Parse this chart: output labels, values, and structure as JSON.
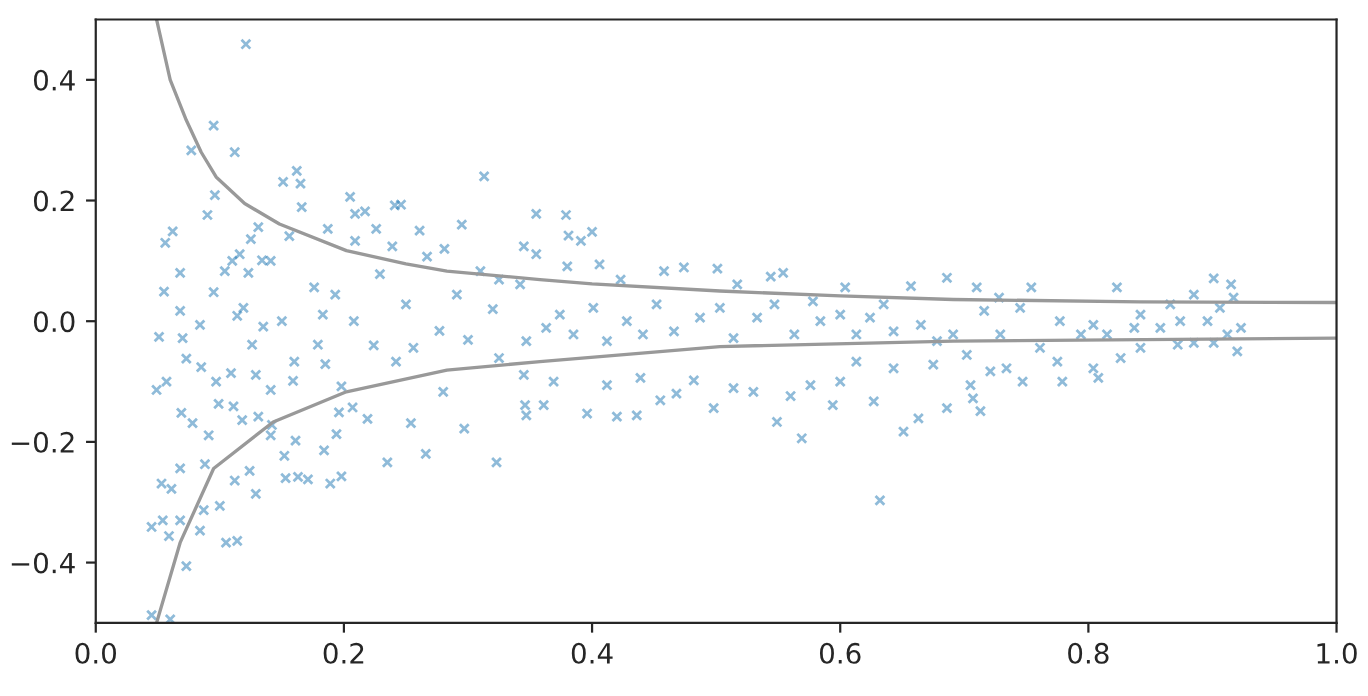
{
  "chart_data": {
    "type": "scatter",
    "marker": "cross",
    "grid": false,
    "xlim": [
      0,
      1
    ],
    "ylim": [
      -0.5,
      0.5
    ],
    "xticks": [
      {
        "value": 0,
        "label": "0.0"
      },
      0.2,
      0.4,
      0.6,
      0.8,
      {
        "value": 1,
        "label": "1.0"
      }
    ],
    "yticks": [
      {
        "value": -0.4,
        "label": "−0.4"
      },
      {
        "value": -0.2,
        "label": "−0.2"
      },
      {
        "value": 0,
        "label": "0.0"
      },
      0.2,
      0.4
    ],
    "series": [
      {
        "color": "#1f77b4",
        "x": [
          0.121,
          0.095,
          0.077,
          0.112,
          0.096,
          0.09,
          0.062,
          0.056,
          0.068,
          0.055,
          0.068,
          0.051,
          0.049,
          0.057,
          0.069,
          0.078,
          0.068,
          0.053,
          0.061,
          0.045,
          0.054,
          0.059,
          0.068,
          0.073,
          0.045,
          0.06,
          0.084,
          0.087,
          0.1,
          0.105,
          0.114,
          0.112,
          0.124,
          0.129,
          0.088,
          0.091,
          0.099,
          0.111,
          0.118,
          0.131,
          0.142,
          0.141,
          0.152,
          0.153,
          0.163,
          0.161,
          0.171,
          0.189,
          0.198,
          0.194,
          0.184,
          0.196,
          0.235,
          0.266,
          0.323,
          0.297,
          0.254,
          0.219,
          0.207,
          0.198,
          0.159,
          0.141,
          0.129,
          0.109,
          0.097,
          0.085,
          0.073,
          0.07,
          0.084,
          0.095,
          0.104,
          0.11,
          0.116,
          0.125,
          0.131,
          0.151,
          0.162,
          0.165,
          0.166,
          0.156,
          0.141,
          0.134,
          0.123,
          0.119,
          0.114,
          0.126,
          0.135,
          0.15,
          0.16,
          0.179,
          0.185,
          0.183,
          0.176,
          0.193,
          0.205,
          0.209,
          0.217,
          0.241,
          0.246,
          0.209,
          0.187,
          0.226,
          0.239,
          0.267,
          0.281,
          0.313,
          0.295,
          0.261,
          0.229,
          0.25,
          0.208,
          0.224,
          0.242,
          0.256,
          0.277,
          0.3,
          0.32,
          0.342,
          0.325,
          0.31,
          0.291,
          0.28,
          0.325,
          0.345,
          0.346,
          0.355,
          0.379,
          0.4,
          0.381,
          0.391,
          0.345,
          0.355,
          0.38,
          0.406,
          0.423,
          0.458,
          0.474,
          0.501,
          0.517,
          0.544,
          0.554,
          0.578,
          0.604,
          0.635,
          0.657,
          0.686,
          0.347,
          0.363,
          0.374,
          0.385,
          0.401,
          0.412,
          0.428,
          0.441,
          0.452,
          0.466,
          0.487,
          0.503,
          0.514,
          0.533,
          0.547,
          0.563,
          0.584,
          0.6,
          0.613,
          0.624,
          0.643,
          0.665,
          0.678,
          0.347,
          0.361,
          0.369,
          0.396,
          0.412,
          0.42,
          0.436,
          0.439,
          0.455,
          0.468,
          0.482,
          0.498,
          0.514,
          0.53,
          0.549,
          0.56,
          0.569,
          0.576,
          0.594,
          0.6,
          0.627,
          0.632,
          0.651,
          0.663,
          0.675,
          0.643,
          0.613,
          0.71,
          0.728,
          0.754,
          0.823,
          0.901,
          0.915,
          0.92,
          0.686,
          0.713,
          0.707,
          0.705,
          0.747,
          0.779,
          0.808,
          0.804,
          0.734,
          0.721,
          0.826,
          0.842,
          0.872,
          0.885,
          0.901,
          0.691,
          0.702,
          0.729,
          0.761,
          0.775,
          0.794,
          0.804,
          0.837,
          0.842,
          0.866,
          0.874,
          0.896,
          0.906,
          0.917,
          0.923,
          0.912,
          0.885,
          0.858,
          0.815,
          0.777,
          0.745,
          0.716
        ],
        "values": [
          0.459,
          0.324,
          0.283,
          0.28,
          0.209,
          0.176,
          0.149,
          0.13,
          0.08,
          0.049,
          0.017,
          -0.026,
          -0.114,
          -0.1,
          -0.152,
          -0.169,
          -0.244,
          -0.269,
          -0.278,
          -0.341,
          -0.33,
          -0.356,
          -0.33,
          -0.406,
          -0.487,
          -0.494,
          -0.347,
          -0.313,
          -0.306,
          -0.367,
          -0.364,
          -0.264,
          -0.248,
          -0.286,
          -0.237,
          -0.189,
          -0.137,
          -0.141,
          -0.164,
          -0.158,
          -0.172,
          -0.189,
          -0.223,
          -0.26,
          -0.258,
          -0.198,
          -0.262,
          -0.269,
          -0.257,
          -0.187,
          -0.214,
          -0.151,
          -0.234,
          -0.22,
          -0.234,
          -0.178,
          -0.169,
          -0.162,
          -0.143,
          -0.108,
          -0.099,
          -0.114,
          -0.089,
          -0.086,
          -0.1,
          -0.076,
          -0.062,
          -0.028,
          -0.006,
          0.048,
          0.083,
          0.1,
          0.111,
          0.136,
          0.156,
          0.231,
          0.249,
          0.228,
          0.189,
          0.141,
          0.1,
          0.101,
          0.08,
          0.022,
          0.009,
          -0.039,
          -0.009,
          0.0,
          -0.067,
          -0.039,
          -0.071,
          0.011,
          0.056,
          0.044,
          0.206,
          0.178,
          0.182,
          0.192,
          0.193,
          0.133,
          0.153,
          0.153,
          0.124,
          0.107,
          0.12,
          0.24,
          0.16,
          0.15,
          0.078,
          0.028,
          0.0,
          -0.04,
          -0.067,
          -0.044,
          -0.016,
          -0.031,
          0.02,
          0.061,
          0.069,
          0.083,
          0.044,
          -0.117,
          -0.061,
          -0.089,
          -0.139,
          0.178,
          0.176,
          0.148,
          0.142,
          0.133,
          0.124,
          0.111,
          0.091,
          0.094,
          0.069,
          0.083,
          0.089,
          0.087,
          0.061,
          0.074,
          0.08,
          0.033,
          0.056,
          0.028,
          0.058,
          0.072,
          -0.033,
          -0.011,
          0.011,
          -0.022,
          0.022,
          -0.033,
          0.0,
          -0.022,
          0.028,
          -0.017,
          0.006,
          0.022,
          -0.028,
          0.006,
          0.028,
          -0.022,
          0.0,
          0.011,
          -0.022,
          0.006,
          -0.017,
          -0.006,
          -0.033,
          -0.156,
          -0.139,
          -0.1,
          -0.153,
          -0.106,
          -0.158,
          -0.156,
          -0.094,
          -0.131,
          -0.12,
          -0.098,
          -0.144,
          -0.111,
          -0.117,
          -0.167,
          -0.124,
          -0.194,
          -0.106,
          -0.139,
          -0.1,
          -0.133,
          -0.297,
          -0.183,
          -0.161,
          -0.072,
          -0.078,
          -0.067,
          0.056,
          0.039,
          0.056,
          0.056,
          0.071,
          0.061,
          -0.05,
          -0.144,
          -0.149,
          -0.128,
          -0.106,
          -0.1,
          -0.1,
          -0.094,
          -0.078,
          -0.078,
          -0.083,
          -0.061,
          -0.044,
          -0.039,
          -0.036,
          -0.036,
          -0.022,
          -0.056,
          -0.022,
          -0.044,
          -0.067,
          -0.022,
          -0.006,
          -0.011,
          0.011,
          0.028,
          0.0,
          0.0,
          0.022,
          0.039,
          -0.011,
          -0.022,
          0.044,
          -0.011,
          -0.022,
          0.0,
          0.022,
          0.017
        ]
      },
      {
        "type": "line",
        "color": "#999999",
        "marker": "none",
        "x": [
          0.049,
          0.06,
          0.073,
          0.085,
          0.097,
          0.12,
          0.148,
          0.202,
          0.25,
          0.283,
          0.358,
          0.4,
          0.503,
          0.6,
          0.691,
          0.842,
          1.0
        ],
        "values": [
          0.5,
          0.4,
          0.333,
          0.28,
          0.239,
          0.195,
          0.161,
          0.117,
          0.095,
          0.083,
          0.069,
          0.062,
          0.05,
          0.042,
          0.036,
          0.032,
          0.031
        ]
      },
      {
        "type": "line",
        "color": "#999999",
        "marker": "none",
        "x": [
          0.049,
          0.068,
          0.095,
          0.143,
          0.202,
          0.283,
          0.358,
          0.503,
          0.691,
          1.0
        ],
        "values": [
          -0.5,
          -0.367,
          -0.244,
          -0.167,
          -0.117,
          -0.081,
          -0.067,
          -0.042,
          -0.033,
          -0.028
        ]
      }
    ]
  }
}
